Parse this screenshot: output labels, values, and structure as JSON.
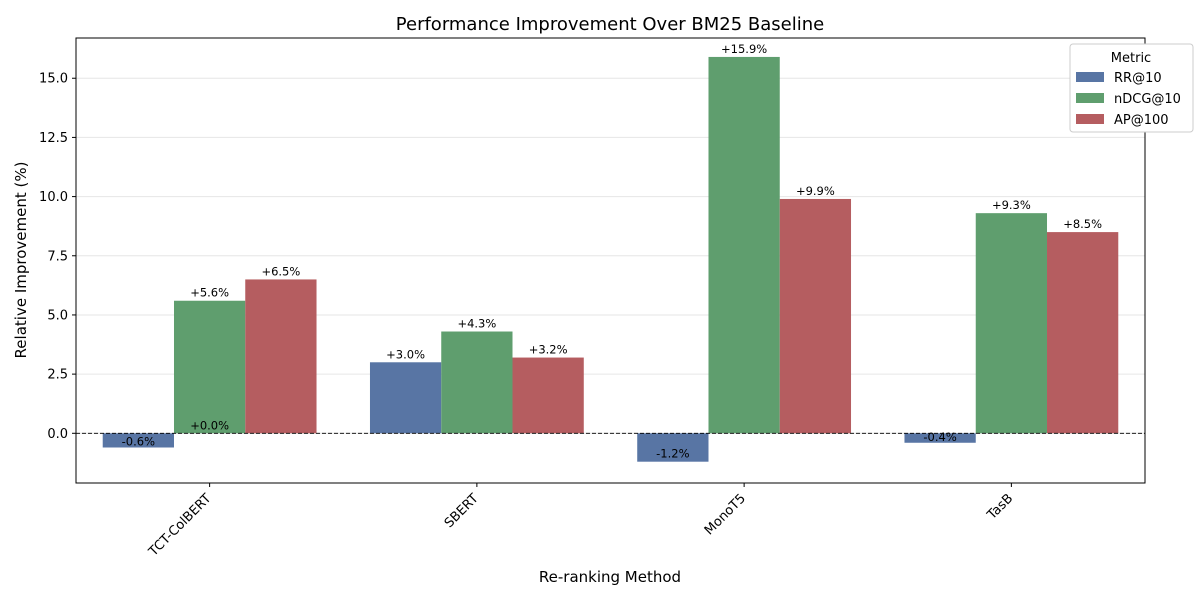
{
  "chart_data": {
    "type": "bar",
    "title": "Performance Improvement Over BM25 Baseline",
    "xlabel": "Re-ranking Method",
    "ylabel": "Relative Improvement (%)",
    "categories": [
      "TCT-ColBERT",
      "SBERT",
      "MonoT5",
      "TasB"
    ],
    "series": [
      {
        "name": "RR@10",
        "color": "#5875a4",
        "values": [
          -0.6,
          3.0,
          -1.2,
          -0.4
        ],
        "labels": [
          "-0.6%",
          "+3.0%",
          "-1.2%",
          "-0.4%"
        ]
      },
      {
        "name": "nDCG@10",
        "color": "#5f9e6e",
        "values": [
          5.6,
          4.3,
          15.9,
          9.3
        ],
        "labels": [
          "+5.6%",
          "+4.3%",
          "+15.9%",
          "+9.3%"
        ]
      },
      {
        "name": "AP@100",
        "color": "#b55d60",
        "values": [
          6.5,
          3.2,
          9.9,
          8.5
        ],
        "labels": [
          "+6.5%",
          "+3.2%",
          "+9.9%",
          "+8.5%"
        ]
      }
    ],
    "extra_annotations": [
      {
        "category": "TCT-ColBERT",
        "text": "+0.0%"
      }
    ],
    "ylim": [
      -2.1,
      16.7
    ],
    "yticks": [
      0.0,
      2.5,
      5.0,
      7.5,
      10.0,
      12.5,
      15.0
    ],
    "ytick_labels": [
      "0.0",
      "2.5",
      "5.0",
      "7.5",
      "10.0",
      "12.5",
      "15.0"
    ],
    "grid": "y",
    "baseline": 0,
    "legend": {
      "title": "Metric",
      "position": "top-right"
    }
  }
}
